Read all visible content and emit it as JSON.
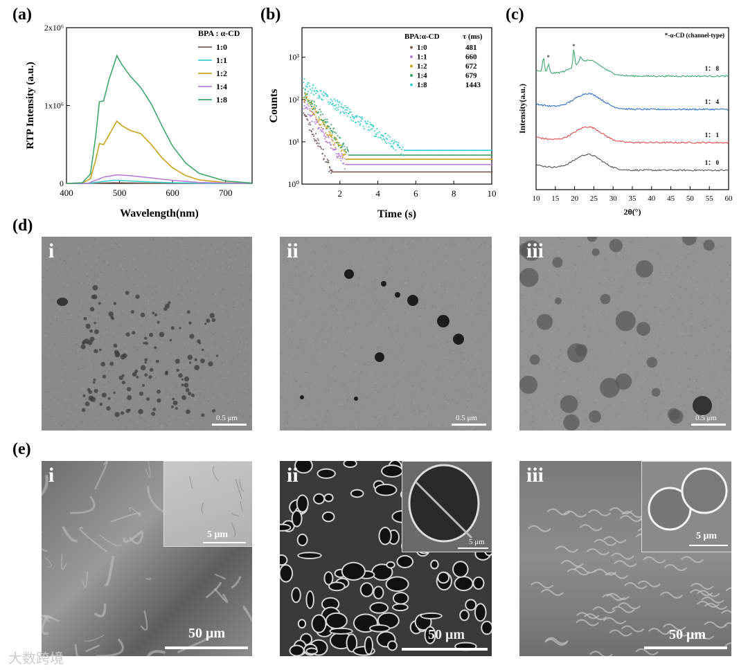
{
  "panel_labels": {
    "a": "(a)",
    "b": "(b)",
    "c": "(c)",
    "d": "(d)",
    "e": "(e)"
  },
  "chart_data": [
    {
      "type": "line",
      "id": "a",
      "xlabel": "Wavelength(nm)",
      "ylabel": "RTP Intensity (a.u.)",
      "xlim": [
        400,
        750
      ],
      "ylim": [
        0,
        2000000
      ],
      "xticks": [
        400,
        500,
        600,
        700
      ],
      "yticks": [
        {
          "v": 0,
          "t": "0"
        },
        {
          "v": 1000000,
          "t": "1x10⁶"
        },
        {
          "v": 2000000,
          "t": "2x10⁶"
        }
      ],
      "legend_title": "BPA : α-CD",
      "legend_position": "top-right",
      "series": [
        {
          "name": "1:0",
          "color": "#7b5c58",
          "points": [
            [
              400,
              0
            ],
            [
              440,
              0
            ],
            [
              460,
              4000
            ],
            [
              490,
              9000
            ],
            [
              520,
              6000
            ],
            [
              560,
              3000
            ],
            [
              600,
              1000
            ],
            [
              650,
              0
            ],
            [
              750,
              0
            ]
          ]
        },
        {
          "name": "1:1",
          "color": "#3ccfcf",
          "points": [
            [
              400,
              0
            ],
            [
              440,
              0
            ],
            [
              460,
              18000
            ],
            [
              490,
              42000
            ],
            [
              520,
              32000
            ],
            [
              560,
              17000
            ],
            [
              600,
              9000
            ],
            [
              650,
              3000
            ],
            [
              750,
              0
            ]
          ]
        },
        {
          "name": "1:2",
          "color": "#c9a21b",
          "points": [
            [
              400,
              0
            ],
            [
              430,
              5000
            ],
            [
              445,
              60000
            ],
            [
              455,
              300000
            ],
            [
              462,
              510000
            ],
            [
              470,
              500000
            ],
            [
              480,
              620000
            ],
            [
              495,
              800000
            ],
            [
              505,
              740000
            ],
            [
              520,
              680000
            ],
            [
              540,
              640000
            ],
            [
              560,
              500000
            ],
            [
              580,
              330000
            ],
            [
              600,
              200000
            ],
            [
              625,
              100000
            ],
            [
              650,
              45000
            ],
            [
              700,
              10000
            ],
            [
              750,
              0
            ]
          ]
        },
        {
          "name": "1:4",
          "color": "#b77ed8",
          "points": [
            [
              400,
              0
            ],
            [
              440,
              0
            ],
            [
              455,
              40000
            ],
            [
              470,
              80000
            ],
            [
              495,
              110000
            ],
            [
              520,
              100000
            ],
            [
              560,
              70000
            ],
            [
              600,
              40000
            ],
            [
              650,
              12000
            ],
            [
              750,
              0
            ]
          ]
        },
        {
          "name": "1:8",
          "color": "#3fa66b",
          "points": [
            [
              400,
              0
            ],
            [
              430,
              8000
            ],
            [
              445,
              120000
            ],
            [
              455,
              600000
            ],
            [
              462,
              1050000
            ],
            [
              470,
              1060000
            ],
            [
              480,
              1330000
            ],
            [
              495,
              1640000
            ],
            [
              505,
              1520000
            ],
            [
              520,
              1380000
            ],
            [
              540,
              1230000
            ],
            [
              560,
              1020000
            ],
            [
              580,
              740000
            ],
            [
              600,
              480000
            ],
            [
              625,
              260000
            ],
            [
              650,
              130000
            ],
            [
              700,
              30000
            ],
            [
              750,
              5000
            ]
          ]
        }
      ]
    },
    {
      "type": "scatter",
      "id": "b",
      "xlabel": "Time (s)",
      "ylabel": "Counts",
      "xlim": [
        0,
        10
      ],
      "ylog": true,
      "ylim": [
        1,
        5000
      ],
      "xticks": [
        2,
        4,
        6,
        8,
        10
      ],
      "yticks": [
        {
          "v": 1,
          "t": "10⁰"
        },
        {
          "v": 10,
          "t": "10¹"
        },
        {
          "v": 100,
          "t": "10²"
        },
        {
          "v": 1000,
          "t": "10³"
        }
      ],
      "legend_headers": [
        "BPA:α-CD",
        "τ (ms)"
      ],
      "legend_position": "top-right",
      "series": [
        {
          "name": "1:0",
          "tau": "481",
          "color": "#7b5c58",
          "y0": 50,
          "tau_s": 0.481,
          "floor": 2
        },
        {
          "name": "1:1",
          "tau": "660",
          "color": "#b77ed8",
          "y0": 90,
          "tau_s": 0.66,
          "floor": 3
        },
        {
          "name": "1:2",
          "tau": "672",
          "color": "#c9a21b",
          "y0": 130,
          "tau_s": 0.672,
          "floor": 4
        },
        {
          "name": "1:4",
          "tau": "679",
          "color": "#3fa66b",
          "y0": 180,
          "tau_s": 0.679,
          "floor": 5
        },
        {
          "name": "1:8",
          "tau": "1443",
          "color": "#3ccfcf",
          "y0": 260,
          "tau_s": 1.443,
          "floor": 6.5
        }
      ]
    },
    {
      "type": "line",
      "id": "c",
      "xlabel": "2θ(°)",
      "ylabel": "Intensity(a.u.)",
      "xlim": [
        10,
        60
      ],
      "xticks": [
        10,
        15,
        20,
        25,
        30,
        35,
        40,
        45,
        50,
        55,
        60
      ],
      "legend_text": "*-α-CD (channel-type)",
      "series": [
        {
          "name": "1:0",
          "label": "1： 0",
          "color": "#555555",
          "offset": 0
        },
        {
          "name": "1:1",
          "label": "1： 1",
          "color": "#e34a4a",
          "offset": 1
        },
        {
          "name": "1:4",
          "label": "1： 4",
          "color": "#2c6fc9",
          "offset": 2
        },
        {
          "name": "1:8",
          "label": "1： 8",
          "color": "#3fa66b",
          "offset": 3
        }
      ]
    }
  ],
  "tem_panels": [
    {
      "label": "i",
      "scale": "0.5 μm"
    },
    {
      "label": "ii",
      "scale": "0.5 μm"
    },
    {
      "label": "iii",
      "scale": "0.5 μm"
    }
  ],
  "sem_panels": [
    {
      "label": "i",
      "scale": "50 μm",
      "inset_scale": "5 μm"
    },
    {
      "label": "ii",
      "scale": "50 μm",
      "inset_scale": "5 μm"
    },
    {
      "label": "iii",
      "scale": "50 μm",
      "inset_scale": "5 μm"
    }
  ],
  "watermark": "大数跨境"
}
